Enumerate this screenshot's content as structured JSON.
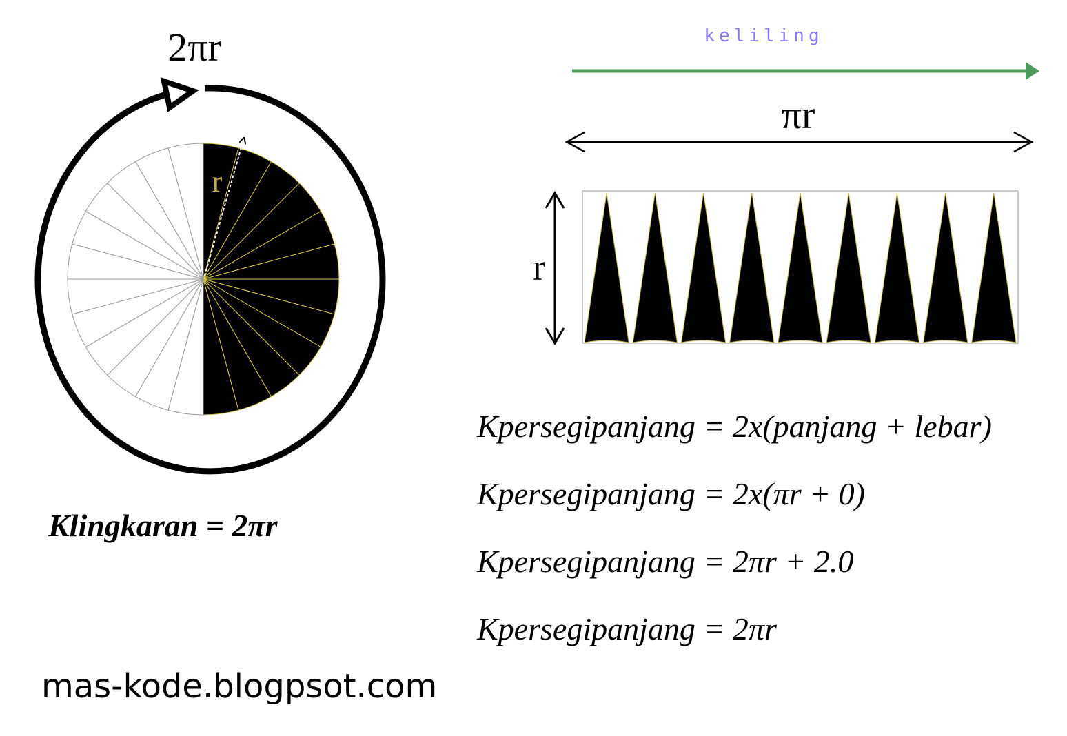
{
  "circle": {
    "circumference_label": "2πr",
    "radius_label": "r",
    "formula": "Klingkaran = 2πr"
  },
  "rectangle": {
    "arrow_label": "keliling",
    "length_label": "πr",
    "height_label": "r"
  },
  "formulas": [
    "Kpersegipanjang = 2x(panjang + lebar)",
    "Kpersegipanjang = 2x(πr + 0)",
    "Kpersegipanjang = 2πr + 2.0",
    "Kpersegipanjang = 2πr"
  ],
  "footer": "mas-kode.blogpsot.com"
}
